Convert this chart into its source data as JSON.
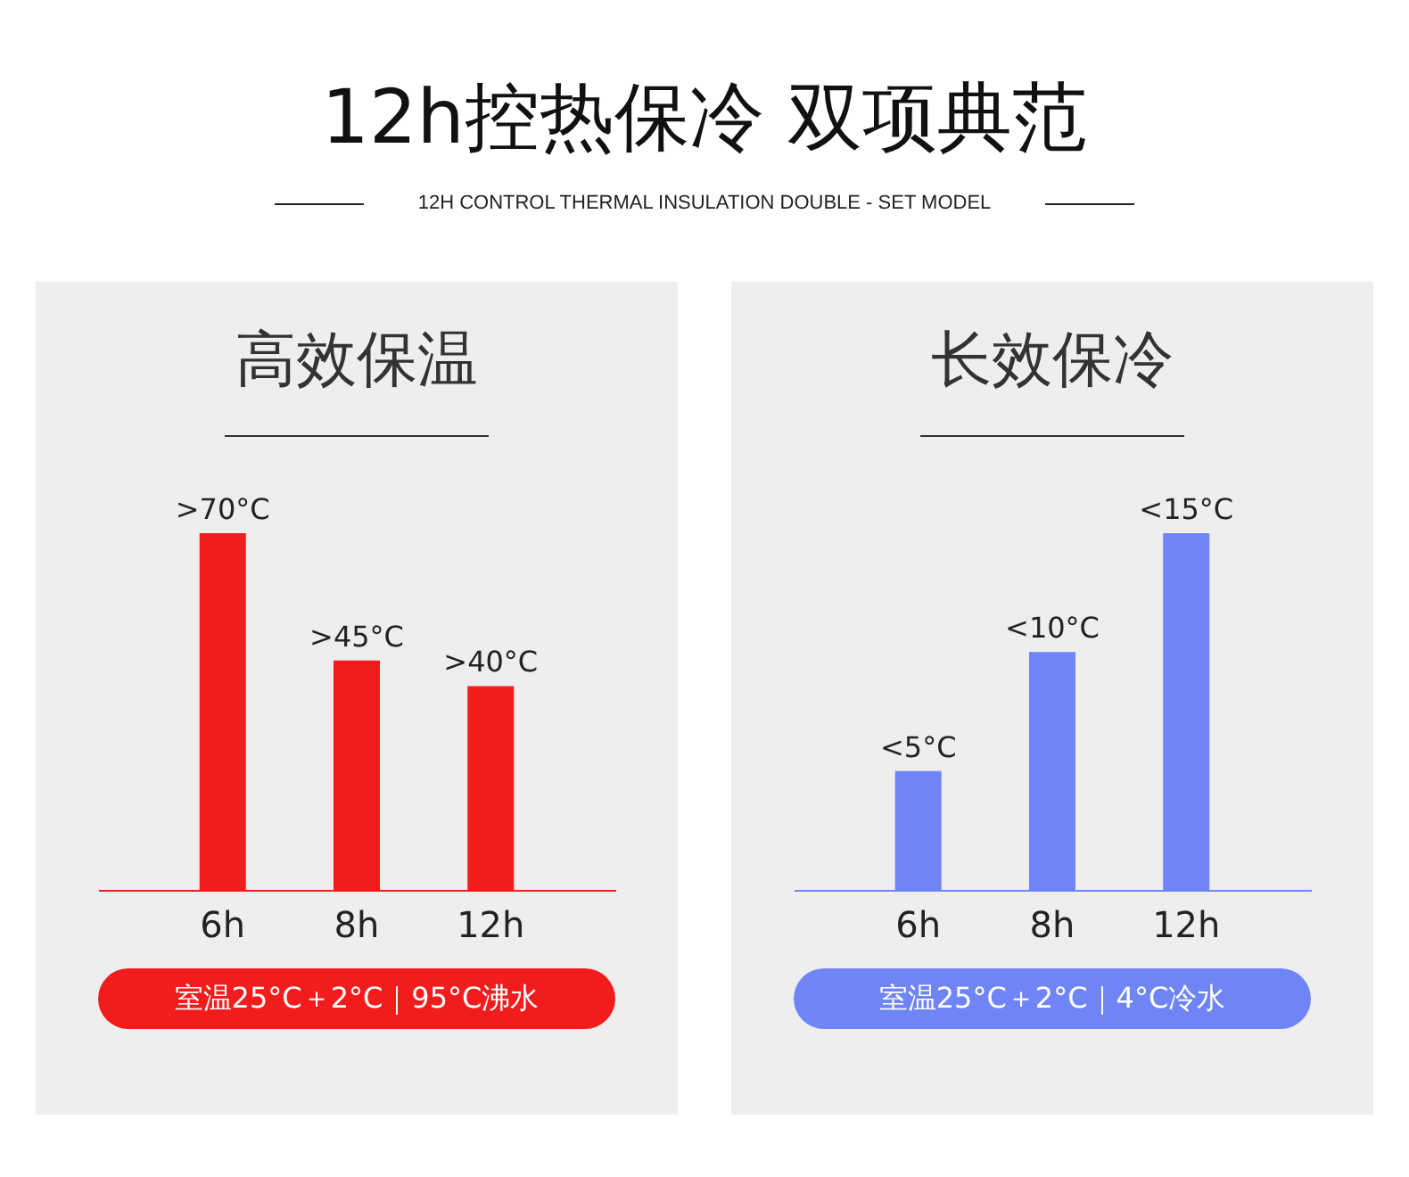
{
  "chart_data": [
    {
      "type": "other",
      "title": "12h控热保冷 双项典范",
      "subtitle": "12H CONTROL THERMAL INSULATION DOUBLE - SET MODEL"
    },
    {
      "type": "bar",
      "title": "高效保温",
      "categories": [
        "6h",
        "8h",
        "12h"
      ],
      "values": [
        70,
        45,
        40
      ],
      "tick_labels": "x",
      "colors": [
        "#f21c1c",
        "#f21c1c",
        "#f21c1c"
      ],
      "value_labels": [
        ">70°C",
        ">45°C",
        ">40°C"
      ],
      "annotations": [
        "室温25°C＋2°C｜95°C沸水"
      ]
    },
    {
      "type": "bar",
      "title": "长效保冷",
      "categories": [
        "6h",
        "8h",
        "12h"
      ],
      "values": [
        5,
        10,
        15
      ],
      "tick_labels": "x",
      "colors": [
        "#7085f5",
        "#7085f5",
        "#7085f5"
      ],
      "value_labels": [
        "<5°C",
        "<10°C",
        "<15°C"
      ],
      "annotations": [
        "室温25°C＋2°C｜4°C冷水"
      ]
    }
  ]
}
